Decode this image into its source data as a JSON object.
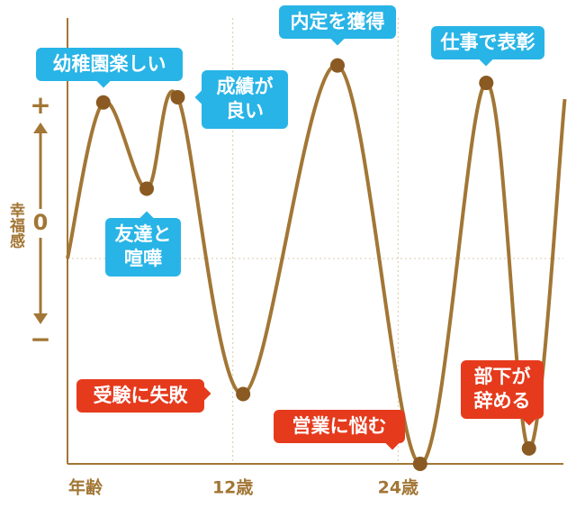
{
  "chart_data": {
    "type": "line",
    "y_title": "幸福感",
    "y_plus": "+",
    "y_minus": "−",
    "x_title": "年齢",
    "x": [
      0,
      2.6,
      5.75,
      8.0,
      12.75,
      19.6,
      25.6,
      30.4,
      33.5,
      36.1
    ],
    "values": [
      0,
      76,
      34,
      78.5,
      -66,
      94,
      -100,
      85.5,
      -92.5,
      77.6
    ],
    "point_labels": [
      null,
      "幼稚園楽しい",
      "友達と喧嘩",
      "成績が良い",
      "受験に失敗",
      "内定を獲得",
      "営業に悩む",
      "仕事で表彰",
      "部下が辞める",
      null
    ],
    "xlim": [
      0,
      36
    ],
    "ylim": [
      -100,
      100
    ],
    "xticks": [
      {
        "value": 12,
        "label": "12歳"
      },
      {
        "value": 24,
        "label": "24歳"
      }
    ],
    "yticks": [
      0
    ],
    "grid": true,
    "color": "#a27635",
    "dot_color": "#8a5a22",
    "axis_color": "#a27635",
    "positive_color": "#28b4e6",
    "negative_color": "#e63a1d"
  }
}
